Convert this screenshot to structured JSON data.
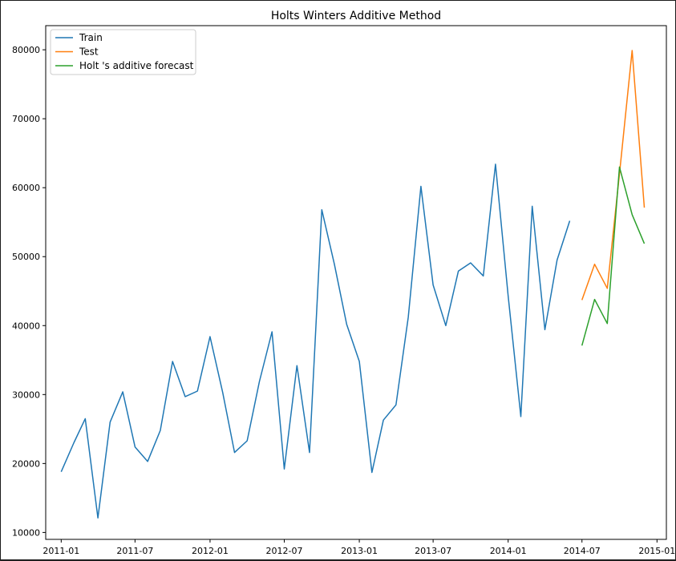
{
  "chart_data": {
    "type": "line",
    "title": "Holts Winters Additive Method",
    "xlabel": "",
    "ylabel": "",
    "x_ticks": [
      "2011-01",
      "2011-07",
      "2012-01",
      "2012-07",
      "2013-01",
      "2013-07",
      "2014-01",
      "2014-07",
      "2015-01"
    ],
    "y_ticks": [
      10000,
      20000,
      30000,
      40000,
      50000,
      60000,
      70000,
      80000
    ],
    "ylim": [
      9000,
      83500
    ],
    "xlim": [
      "2010-11-24",
      "2015-01-24"
    ],
    "grid": false,
    "legend_position": "top-left",
    "series": [
      {
        "name": "Train",
        "color": "#1f77b4",
        "points": [
          [
            "2011-01-01",
            18800
          ],
          [
            "2011-02-01",
            23000
          ],
          [
            "2011-03-01",
            26500
          ],
          [
            "2011-04-01",
            12100
          ],
          [
            "2011-05-01",
            26000
          ],
          [
            "2011-06-01",
            30400
          ],
          [
            "2011-07-01",
            22400
          ],
          [
            "2011-08-01",
            20300
          ],
          [
            "2011-09-01",
            24800
          ],
          [
            "2011-10-01",
            34800
          ],
          [
            "2011-11-01",
            29700
          ],
          [
            "2011-12-01",
            30500
          ],
          [
            "2012-01-01",
            38400
          ],
          [
            "2012-02-01",
            30300
          ],
          [
            "2012-03-01",
            21600
          ],
          [
            "2012-04-01",
            23300
          ],
          [
            "2012-05-01",
            31900
          ],
          [
            "2012-06-01",
            39100
          ],
          [
            "2012-07-01",
            19200
          ],
          [
            "2012-08-01",
            34200
          ],
          [
            "2012-09-01",
            21600
          ],
          [
            "2012-10-01",
            56800
          ],
          [
            "2012-11-01",
            48900
          ],
          [
            "2012-12-01",
            40200
          ],
          [
            "2013-01-01",
            34800
          ],
          [
            "2013-02-01",
            18700
          ],
          [
            "2013-03-01",
            26300
          ],
          [
            "2013-04-01",
            28500
          ],
          [
            "2013-05-01",
            41200
          ],
          [
            "2013-06-01",
            60200
          ],
          [
            "2013-07-01",
            45900
          ],
          [
            "2013-08-01",
            40000
          ],
          [
            "2013-09-01",
            47900
          ],
          [
            "2013-10-01",
            49100
          ],
          [
            "2013-11-01",
            47200
          ],
          [
            "2013-12-01",
            63400
          ],
          [
            "2014-01-01",
            44300
          ],
          [
            "2014-02-01",
            26800
          ],
          [
            "2014-03-01",
            57300
          ],
          [
            "2014-04-01",
            39400
          ],
          [
            "2014-05-01",
            49500
          ],
          [
            "2014-06-01",
            55200
          ]
        ]
      },
      {
        "name": "Test",
        "color": "#ff7f0e",
        "points": [
          [
            "2014-07-01",
            43700
          ],
          [
            "2014-08-01",
            48900
          ],
          [
            "2014-09-01",
            45400
          ],
          [
            "2014-10-01",
            62000
          ],
          [
            "2014-11-01",
            79900
          ],
          [
            "2014-12-01",
            57100
          ]
        ]
      },
      {
        "name": "Holt 's additive forecast",
        "color": "#2ca02c",
        "points": [
          [
            "2014-07-01",
            37100
          ],
          [
            "2014-08-01",
            43800
          ],
          [
            "2014-09-01",
            40300
          ],
          [
            "2014-10-01",
            63000
          ],
          [
            "2014-11-01",
            56100
          ],
          [
            "2014-12-01",
            51900
          ]
        ]
      }
    ]
  }
}
